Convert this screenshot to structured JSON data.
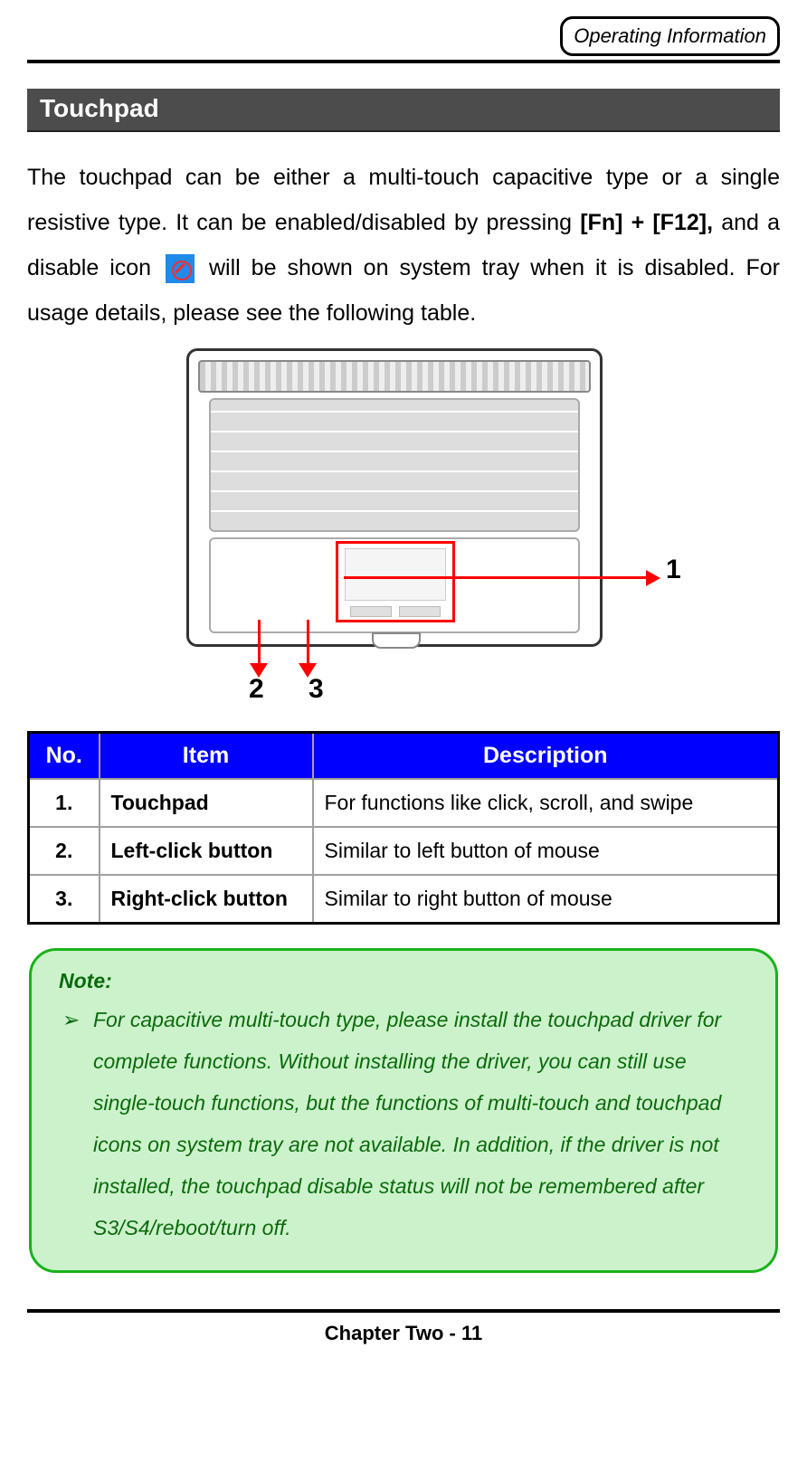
{
  "header": {
    "badge": "Operating Information"
  },
  "section": {
    "title": "Touchpad"
  },
  "para": {
    "p1a": "The touchpad can be either a multi-touch capacitive type or a single resistive type. It can be enabled/disabled by pressing ",
    "p1_bold": "[Fn] + [F12],",
    "p1b": " and a disable icon ",
    "p1c": " will be shown on system tray when it is disabled. For usage details, please see the following table."
  },
  "figure": {
    "labels": {
      "one": "1",
      "two": "2",
      "three": "3"
    }
  },
  "table": {
    "headers": {
      "no": "No.",
      "item": "Item",
      "desc": "Description"
    },
    "rows": [
      {
        "no": "1.",
        "item": "Touchpad",
        "desc": "For functions like click, scroll, and swipe"
      },
      {
        "no": "2.",
        "item": "Left-click button",
        "desc": "Similar to left button of mouse"
      },
      {
        "no": "3.",
        "item": "Right-click button",
        "desc": "Similar to right button of mouse"
      }
    ]
  },
  "note": {
    "title": "Note:",
    "body": "For capacitive multi-touch type, please install the touchpad driver for complete functions. Without installing the driver, you can still use single-touch functions, but the functions of multi-touch and touchpad icons on system tray are not available. In addition, if the driver is not installed, the touchpad disable status will not be remembered after S3/S4/reboot/turn off."
  },
  "footer": {
    "text": "Chapter Two - 11"
  },
  "colors": {
    "section_bg": "#4c4c4c",
    "table_header_bg": "#0000ff",
    "note_border": "#19b219",
    "note_bg": "#ccf2cc",
    "note_text": "#0a6a0a",
    "callout": "#ff0000"
  }
}
